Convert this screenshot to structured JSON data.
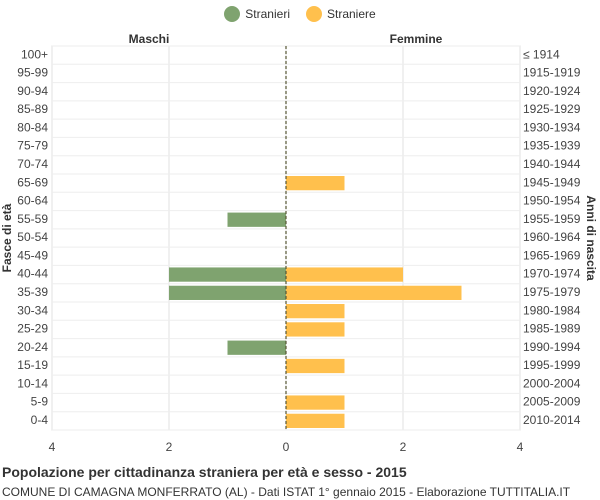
{
  "legend": {
    "items": [
      {
        "label": "Stranieri",
        "color": "#7fa36f"
      },
      {
        "label": "Straniere",
        "color": "#ffc04d"
      }
    ]
  },
  "panels": {
    "left": "Maschi",
    "right": "Femmine"
  },
  "axes": {
    "left_label": "Fasce di età",
    "right_label": "Anni di nascita"
  },
  "footer": {
    "title": "Popolazione per cittadinanza straniera per età e sesso - 2015",
    "subtitle": "COMUNE DI CAMAGNA MONFERRATO (AL) - Dati ISTAT 1° gennaio 2015 - Elaborazione TUTTITALIA.IT"
  },
  "chart_data": {
    "type": "bar",
    "orientation": "horizontal-pyramid",
    "categories": [
      "100+",
      "95-99",
      "90-94",
      "85-89",
      "80-84",
      "75-79",
      "70-74",
      "65-69",
      "60-64",
      "55-59",
      "50-54",
      "45-49",
      "40-44",
      "35-39",
      "30-34",
      "25-29",
      "20-24",
      "15-19",
      "10-14",
      "5-9",
      "0-4"
    ],
    "birth_years": [
      "≤ 1914",
      "1915-1919",
      "1920-1924",
      "1925-1929",
      "1930-1934",
      "1935-1939",
      "1940-1944",
      "1945-1949",
      "1950-1954",
      "1955-1959",
      "1960-1964",
      "1965-1969",
      "1970-1974",
      "1975-1979",
      "1980-1984",
      "1985-1989",
      "1990-1994",
      "1995-1999",
      "2000-2004",
      "2005-2009",
      "2010-2014"
    ],
    "series": [
      {
        "name": "Stranieri",
        "side": "left",
        "color": "#7fa36f",
        "values": [
          0,
          0,
          0,
          0,
          0,
          0,
          0,
          0,
          0,
          1,
          0,
          0,
          2,
          2,
          0,
          0,
          1,
          0,
          0,
          0,
          0
        ]
      },
      {
        "name": "Straniere",
        "side": "right",
        "color": "#ffc04d",
        "values": [
          0,
          0,
          0,
          0,
          0,
          0,
          0,
          1,
          0,
          0,
          0,
          0,
          2,
          3,
          1,
          1,
          0,
          1,
          0,
          1,
          1
        ]
      }
    ],
    "xlim": [
      -4,
      4
    ],
    "xticks": [
      "4",
      "2",
      "0",
      "2",
      "4"
    ],
    "grid": true,
    "legend_position": "top-center"
  }
}
